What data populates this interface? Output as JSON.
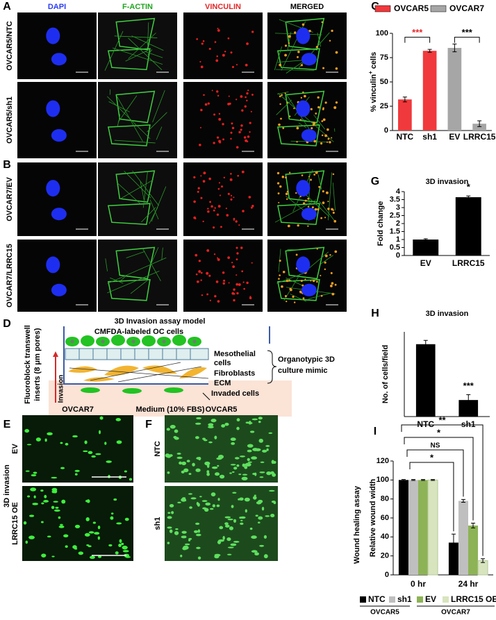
{
  "panel_labels": [
    "A",
    "B",
    "C",
    "D",
    "E",
    "F",
    "G",
    "H",
    "I"
  ],
  "microscopy": {
    "columns": [
      "DAPI",
      "F-ACTIN",
      "VINCULIN",
      "MERGED"
    ],
    "rows": [
      "OVCAR5/NTC",
      "OVCAR5/sh1",
      "OVCAR7/EV",
      "OVCAR7/LRRC15"
    ]
  },
  "invasion_model": {
    "title": "3D Invasion assay model",
    "cells_label": "CMFDA-labeled OC cells",
    "insert_label": [
      "Fluoroblock transwell",
      "inserts (8 μm pores)"
    ],
    "layer_labels": [
      "Mesothelial",
      "cells",
      "Fibroblasts",
      "ECM"
    ],
    "invaded_label": "Invaded cells",
    "mimic_label": [
      "Organotypic 3D",
      "culture mimic"
    ],
    "invasion_label": "Invasion",
    "medium_label": "Medium (10% FBS)"
  },
  "invasion_images": {
    "side_label": "3D invasion",
    "panels": [
      {
        "title": "OVCAR7",
        "rows": [
          "EV",
          "LRRC15 OE"
        ]
      },
      {
        "title": "OVCAR5",
        "rows": [
          "NTC",
          "sh1"
        ]
      }
    ]
  },
  "chart_data": [
    {
      "type": "bar",
      "ylabel": [
        "% vinculin",
        "+",
        " cells"
      ],
      "categories": [
        "NTC",
        "sh1",
        "EV",
        "LRRC15"
      ],
      "series": [
        {
          "name": "OVCAR5",
          "color": "#f0393c",
          "values": [
            32,
            82,
            null,
            null
          ],
          "errors": [
            2.5,
            1.5,
            null,
            null
          ]
        },
        {
          "name": "OVCAR7",
          "color": "#a6a6a6",
          "values": [
            null,
            null,
            85,
            7
          ],
          "errors": [
            null,
            null,
            4,
            3
          ]
        }
      ],
      "ylim": [
        0,
        100
      ],
      "yticks": [
        0,
        25,
        50,
        75,
        100
      ],
      "annotations": [
        {
          "text": "***",
          "color": "#e8262a"
        },
        {
          "text": "***",
          "color": "#000000"
        }
      ]
    },
    {
      "type": "bar",
      "title": "3D invasion",
      "ylabel": "Fold change",
      "categories": [
        "EV",
        "LRRC15"
      ],
      "series": [
        {
          "color": "#000000",
          "values": [
            1,
            3.65
          ],
          "errors": [
            0.05,
            0.08
          ]
        }
      ],
      "ylim": [
        0,
        4
      ],
      "yticks": [
        0,
        0.5,
        1,
        1.5,
        2,
        2.5,
        3,
        3.5,
        4
      ],
      "annotations": [
        {
          "text": "*"
        }
      ]
    },
    {
      "type": "bar",
      "title": "3D invasion",
      "ylabel": "No. of cells/field",
      "categories": [
        "NTC",
        "sh1"
      ],
      "series": [
        {
          "color": "#000000",
          "values": [
            188,
            43
          ],
          "errors": [
            10,
            14
          ]
        }
      ],
      "ylim": [
        0,
        220
      ],
      "annotations": [
        {
          "text": "***"
        }
      ]
    },
    {
      "type": "bar",
      "side_label": "Wound healing assay",
      "ylabel": "Relative wound width",
      "categories": [
        "0 hr",
        "24 hr"
      ],
      "series": [
        {
          "name": "NTC",
          "color": "#000000",
          "values": [
            100,
            34
          ],
          "errors": [
            0.5,
            9
          ]
        },
        {
          "name": "sh1",
          "color": "#bfbfbf",
          "values": [
            100,
            78
          ],
          "errors": [
            0.5,
            1.5
          ]
        },
        {
          "name": "EV",
          "color": "#8db356",
          "values": [
            100,
            52
          ],
          "errors": [
            0.5,
            2.5
          ]
        },
        {
          "name": "LRRC15 OE",
          "color": "#d7e4bd",
          "values": [
            100,
            15
          ],
          "errors": [
            0.5,
            2
          ]
        }
      ],
      "legend_groups": [
        "OVCAR5",
        "OVCAR7"
      ],
      "ylim": [
        0,
        120
      ],
      "yticks": [
        0,
        20,
        40,
        60,
        80,
        100,
        120
      ],
      "annotations": [
        {
          "text": "**"
        },
        {
          "text": "*"
        },
        {
          "text": "NS"
        },
        {
          "text": "*"
        }
      ]
    }
  ]
}
